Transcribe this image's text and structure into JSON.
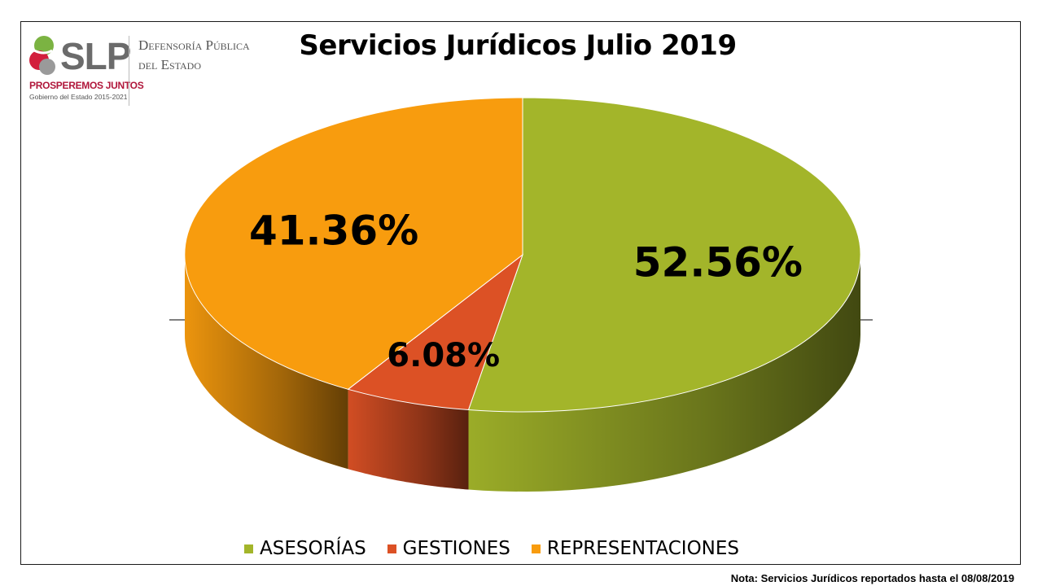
{
  "header": {
    "logo_text": "SLP",
    "logo_tagline": "PROSPEREMOS JUNTOS",
    "logo_subtitle": "Gobierno del Estado 2015-2021",
    "org_line1": "Defensoría Pública",
    "org_line2": "del Estado"
  },
  "chart_data": {
    "type": "pie",
    "title": "Servicios Jurídicos Julio 2019",
    "categories": [
      "ASESORÍAS",
      "GESTIONES",
      "REPRESENTACIONES"
    ],
    "values": [
      52.56,
      6.08,
      41.36
    ],
    "labels": [
      "52.56%",
      "6.08%",
      "41.36%"
    ],
    "colors": [
      "#a3b52a",
      "#dc5125",
      "#f89c0e"
    ],
    "legend_position": "bottom",
    "style": "3d"
  },
  "footer": {
    "note": "Nota: Servicios Jurídicos reportados hasta el 08/08/2019"
  }
}
